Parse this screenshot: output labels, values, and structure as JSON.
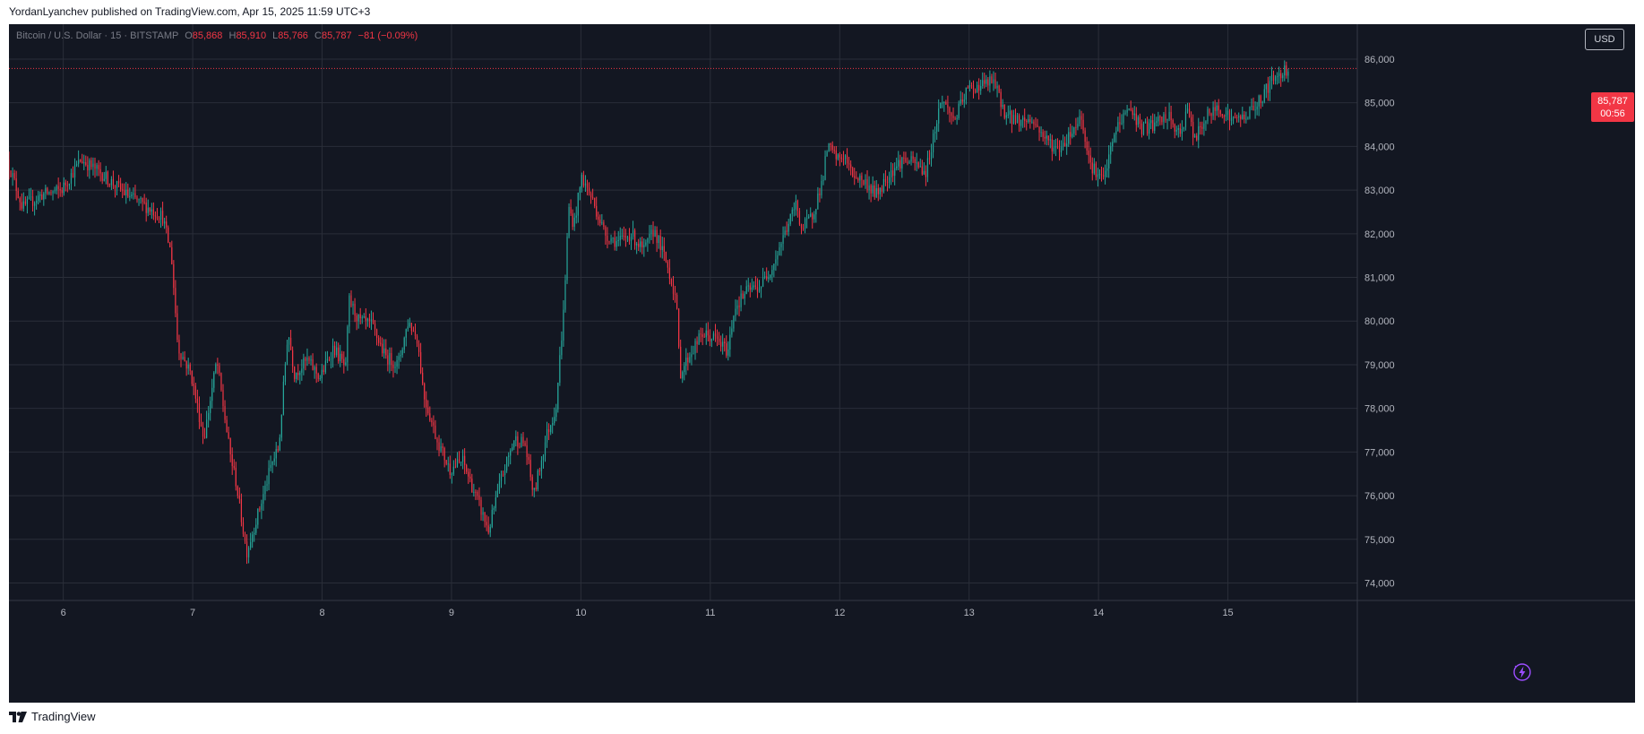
{
  "header": {
    "author": "YordanLyanchev",
    "publish_text": "published on TradingView.com, Apr 15, 2025 11:59 UTC+3"
  },
  "legend": {
    "symbol": "Bitcoin / U.S. Dollar · 15 · BITSTAMP",
    "o_label": "O",
    "o_value": "85,868",
    "h_label": "H",
    "h_value": "85,910",
    "l_label": "L",
    "l_value": "85,766",
    "c_label": "C",
    "c_value": "85,787",
    "change": "−81 (−0.09%)"
  },
  "currency_button": "USD",
  "last_price": {
    "value": "85,787",
    "countdown": "00:56",
    "price": 85787
  },
  "footer": {
    "brand": "TradingView"
  },
  "colors": {
    "up": "#26a69a",
    "down": "#f23645",
    "background": "#131722",
    "grid": "#2a2e39"
  },
  "chart_data": {
    "type": "candlestick",
    "x_tick_labels": [
      "6",
      "7",
      "8",
      "9",
      "10",
      "11",
      "12",
      "13",
      "14",
      "15"
    ],
    "y_tick_labels": [
      "74,000",
      "75,000",
      "76,000",
      "77,000",
      "78,000",
      "79,000",
      "80,000",
      "81,000",
      "82,000",
      "83,000",
      "84,000",
      "85,000",
      "86,000"
    ],
    "ylim": [
      73600,
      86800
    ],
    "xlim_days": [
      5.58,
      16.0
    ],
    "path": [
      [
        5.58,
        83700
      ],
      [
        5.7,
        82600
      ],
      [
        5.85,
        82900
      ],
      [
        6.0,
        83000
      ],
      [
        6.15,
        83700
      ],
      [
        6.3,
        83400
      ],
      [
        6.5,
        82900
      ],
      [
        6.78,
        82400
      ],
      [
        6.85,
        81500
      ],
      [
        6.9,
        79400
      ],
      [
        7.0,
        78800
      ],
      [
        7.1,
        77300
      ],
      [
        7.2,
        79100
      ],
      [
        7.3,
        77000
      ],
      [
        7.35,
        76300
      ],
      [
        7.43,
        74700
      ],
      [
        7.55,
        75900
      ],
      [
        7.62,
        76700
      ],
      [
        7.68,
        77100
      ],
      [
        7.75,
        79800
      ],
      [
        7.8,
        78800
      ],
      [
        7.9,
        79100
      ],
      [
        8.0,
        78700
      ],
      [
        8.1,
        79400
      ],
      [
        8.2,
        78900
      ],
      [
        8.22,
        80500
      ],
      [
        8.3,
        80000
      ],
      [
        8.4,
        79900
      ],
      [
        8.5,
        79200
      ],
      [
        8.6,
        79000
      ],
      [
        8.68,
        80000
      ],
      [
        8.75,
        79600
      ],
      [
        8.8,
        78300
      ],
      [
        8.9,
        77300
      ],
      [
        9.0,
        76600
      ],
      [
        9.1,
        76800
      ],
      [
        9.2,
        76000
      ],
      [
        9.3,
        75200
      ],
      [
        9.4,
        76400
      ],
      [
        9.5,
        77300
      ],
      [
        9.58,
        77200
      ],
      [
        9.65,
        76000
      ],
      [
        9.75,
        77400
      ],
      [
        9.82,
        78000
      ],
      [
        9.88,
        80200
      ],
      [
        9.92,
        82600
      ],
      [
        9.96,
        82200
      ],
      [
        10.02,
        83300
      ],
      [
        10.1,
        82800
      ],
      [
        10.2,
        82000
      ],
      [
        10.3,
        81800
      ],
      [
        10.4,
        82000
      ],
      [
        10.5,
        81600
      ],
      [
        10.58,
        82100
      ],
      [
        10.68,
        81300
      ],
      [
        10.75,
        80500
      ],
      [
        10.78,
        78800
      ],
      [
        10.85,
        79200
      ],
      [
        10.95,
        79700
      ],
      [
        11.05,
        79600
      ],
      [
        11.15,
        79300
      ],
      [
        11.2,
        80300
      ],
      [
        11.3,
        80700
      ],
      [
        11.4,
        80800
      ],
      [
        11.5,
        81300
      ],
      [
        11.6,
        82100
      ],
      [
        11.68,
        82700
      ],
      [
        11.72,
        82100
      ],
      [
        11.8,
        82400
      ],
      [
        11.88,
        83200
      ],
      [
        11.92,
        84000
      ],
      [
        12.0,
        83700
      ],
      [
        12.05,
        83800
      ],
      [
        12.1,
        83400
      ],
      [
        12.2,
        83200
      ],
      [
        12.3,
        82900
      ],
      [
        12.4,
        83400
      ],
      [
        12.5,
        83700
      ],
      [
        12.6,
        83600
      ],
      [
        12.68,
        83400
      ],
      [
        12.75,
        84400
      ],
      [
        12.8,
        85100
      ],
      [
        12.9,
        84600
      ],
      [
        13.0,
        85300
      ],
      [
        13.1,
        85400
      ],
      [
        13.2,
        85500
      ],
      [
        13.3,
        84700
      ],
      [
        13.4,
        84600
      ],
      [
        13.5,
        84600
      ],
      [
        13.6,
        84200
      ],
      [
        13.7,
        83900
      ],
      [
        13.82,
        84400
      ],
      [
        13.88,
        84700
      ],
      [
        13.95,
        83600
      ],
      [
        14.05,
        83200
      ],
      [
        14.15,
        84400
      ],
      [
        14.25,
        84900
      ],
      [
        14.35,
        84400
      ],
      [
        14.45,
        84500
      ],
      [
        14.55,
        84700
      ],
      [
        14.65,
        84200
      ],
      [
        14.7,
        85000
      ],
      [
        14.75,
        84100
      ],
      [
        14.85,
        84700
      ],
      [
        14.95,
        84900
      ],
      [
        15.05,
        84600
      ],
      [
        15.15,
        84700
      ],
      [
        15.25,
        85000
      ],
      [
        15.35,
        85500
      ],
      [
        15.43,
        85700
      ],
      [
        15.48,
        85787
      ]
    ]
  }
}
